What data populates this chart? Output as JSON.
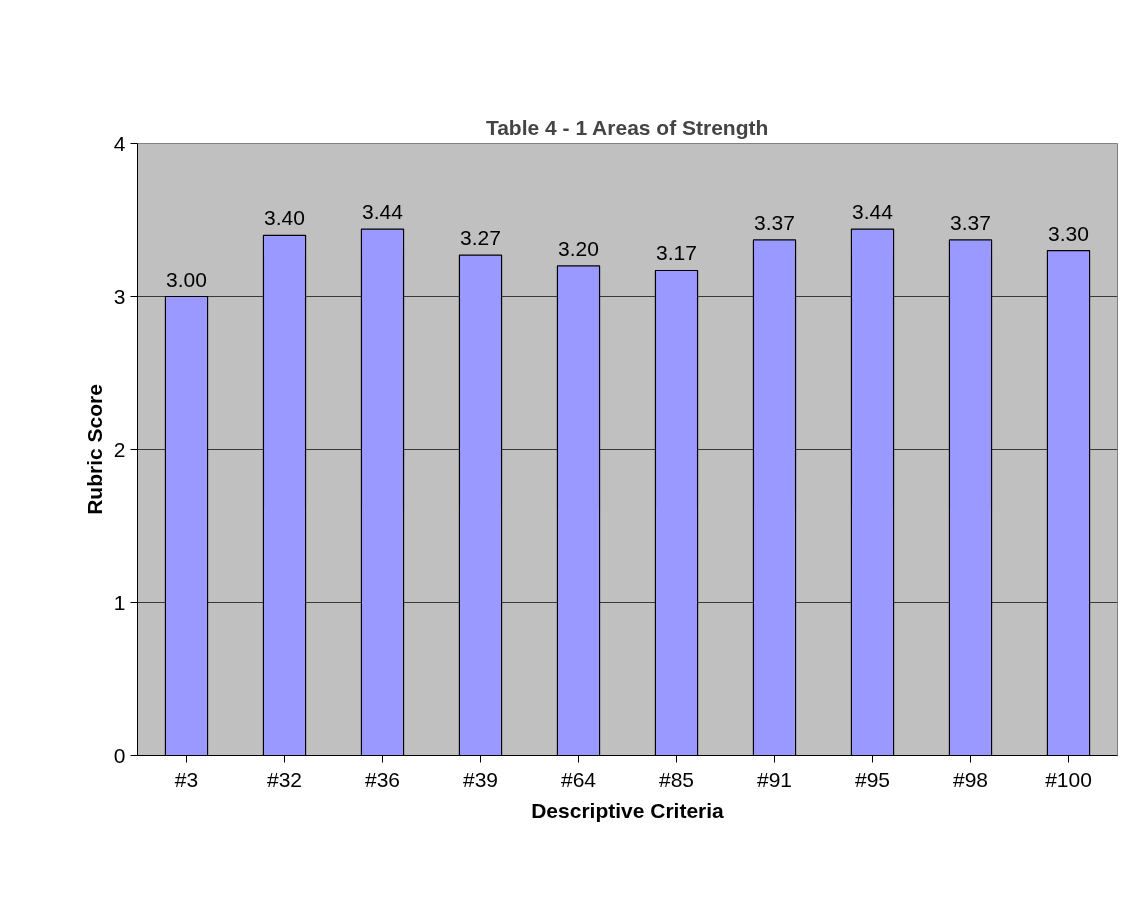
{
  "chart_data": {
    "type": "bar",
    "title": "Table 4 - 1 Areas of Strength",
    "xlabel": "Descriptive Criteria",
    "ylabel": "Rubric Score",
    "categories": [
      "#3",
      "#32",
      "#36",
      "#39",
      "#64",
      "#85",
      "#91",
      "#95",
      "#98",
      "#100"
    ],
    "values": [
      3.0,
      3.4,
      3.44,
      3.27,
      3.2,
      3.17,
      3.37,
      3.44,
      3.37,
      3.3
    ],
    "color": "#9999ff",
    "ylim": [
      0,
      4
    ],
    "yticks": [
      0,
      1,
      2,
      3,
      4
    ],
    "grid": "y",
    "value_labels": [
      "3.00",
      "3.40",
      "3.44",
      "3.27",
      "3.20",
      "3.17",
      "3.37",
      "3.44",
      "3.37",
      "3.30"
    ]
  }
}
